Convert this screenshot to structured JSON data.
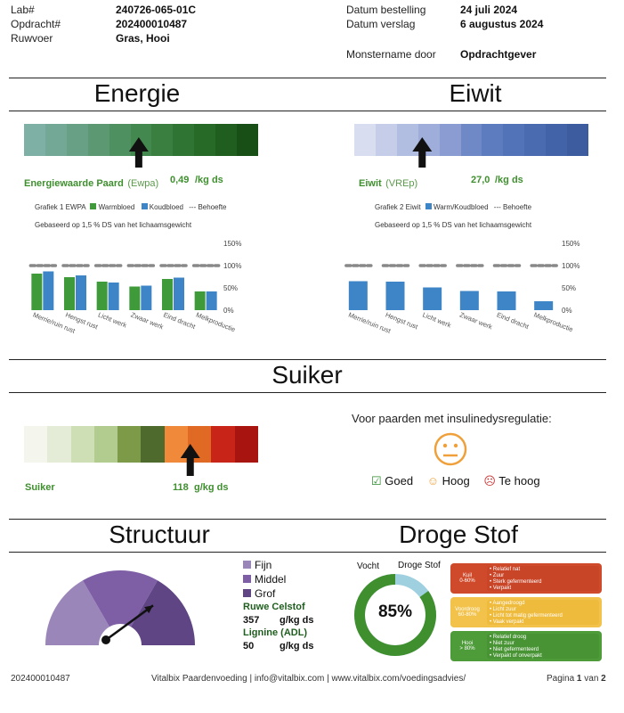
{
  "header": {
    "lab_label": "Lab#",
    "lab_value": "240726-065-01C",
    "order_label": "Opdracht#",
    "order_value": "202400010487",
    "feed_label": "Ruwvoer",
    "feed_value": "Gras, Hooi",
    "order_date_label": "Datum bestelling",
    "order_date_value": "24 juli 2024",
    "report_date_label": "Datum verslag",
    "report_date_value": "6 augustus 2024",
    "sampling_label": "Monstername door",
    "sampling_value": "Opdrachtgever"
  },
  "energie": {
    "title": "Energie",
    "colors": [
      "#7fb0a6",
      "#72a895",
      "#67a084",
      "#5c9872",
      "#4f9060",
      "#43884e",
      "#3a7f40",
      "#307433",
      "#276a28",
      "#1f5e1e",
      "#184f16"
    ],
    "arrow_position": 0.49,
    "name": "Energiewaarde Paard",
    "unit_abbr": "(Ewpa)",
    "value": "0,49",
    "unit": "/kg ds",
    "legend_title": "Grafiek 1 EWPA",
    "legend_a": "Warmbloed",
    "legend_b": "Koudbloed",
    "legend_c": "--- Behoefte",
    "note": "Gebaseerd op 1,5 % DS van het lichaamsgewicht"
  },
  "eiwit": {
    "title": "Eiwit",
    "colors": [
      "#d8def0",
      "#c5cde9",
      "#b2bde2",
      "#9fadda",
      "#8a9cd2",
      "#6f89c6",
      "#5d7bbf",
      "#5273b8",
      "#4a6bb0",
      "#4363a8",
      "#3d5ca0"
    ],
    "arrow_position": 0.29,
    "name": "Eiwit",
    "unit_abbr": "(VREp)",
    "value": "27,0",
    "unit": "/kg ds",
    "legend_title": "Grafiek 2 Eiwit",
    "legend_a": "Warm/Koudbloed",
    "legend_c": "--- Behoefte",
    "note": "Gebaseerd op 1,5 % DS van het lichaamsgewicht"
  },
  "chart_data": [
    {
      "type": "bar",
      "title": "Grafiek 1 EWPA",
      "categories": [
        "Merrie/ruin rust",
        "Hengst rust",
        "Licht werk",
        "Zwaar werk",
        "Eind dracht",
        "Melkproductie"
      ],
      "series": [
        {
          "name": "Warmbloed",
          "values": [
            82,
            74,
            64,
            53,
            70,
            42
          ]
        },
        {
          "name": "Koudbloed",
          "values": [
            87,
            78,
            62,
            55,
            73,
            42
          ]
        },
        {
          "name": "Behoefte",
          "values": [
            100,
            100,
            100,
            100,
            100,
            100
          ]
        }
      ],
      "y_ticks": [
        "150%",
        "100%",
        "50%",
        "0%"
      ],
      "ylim": [
        0,
        150
      ]
    },
    {
      "type": "bar",
      "title": "Grafiek 2 Eiwit",
      "categories": [
        "Merrie/ruin rust",
        "Hengst rust",
        "Licht werk",
        "Zwaar werk",
        "Eind dracht",
        "Melkproductie"
      ],
      "series": [
        {
          "name": "Warm/Koudbloed",
          "values": [
            65,
            64,
            51,
            43,
            42,
            20
          ]
        },
        {
          "name": "Behoefte",
          "values": [
            100,
            100,
            100,
            100,
            100,
            100
          ]
        }
      ],
      "y_ticks": [
        "150%",
        "100%",
        "50%",
        "0%"
      ],
      "ylim": [
        0,
        150
      ]
    }
  ],
  "suiker": {
    "title": "Suiker",
    "colors": [
      "#f4f6ee",
      "#e4ebd6",
      "#cfdfb5",
      "#b2cb8f",
      "#7c9a47",
      "#4e6a2c",
      "#f08a3a",
      "#e06a24",
      "#c82418",
      "#a81410"
    ],
    "arrow_position": 0.71,
    "name": "Suiker",
    "value": "118",
    "unit": "g/kg ds",
    "advice_title": "Voor paarden met insulinedysregulatie:",
    "legend_good": "Goed",
    "legend_high": "Hoog",
    "legend_too_high": "Te hoog",
    "good_glyph": "☑",
    "high_glyph": "☺",
    "too_high_glyph": "☹"
  },
  "structuur": {
    "title": "Structuur",
    "legend_fijn": "Fijn",
    "legend_middel": "Middel",
    "legend_grof": "Grof",
    "colors": [
      "#9b86ba",
      "#7e5fa6",
      "#5f4584"
    ],
    "needle_value": 0.72,
    "celstof_label": "Ruwe Celstof",
    "celstof_value": "357",
    "celstof_unit": "g/kg ds",
    "lignine_label": "Lignine (ADL)",
    "lignine_value": "50",
    "lignine_unit": "g/kg ds"
  },
  "droge_stof": {
    "title": "Droge Stof",
    "vocht_label": "Vocht",
    "ds_label": "Droge Stof",
    "percent": "85%",
    "fraction": 0.85,
    "boxes": [
      {
        "name": "Kuil",
        "range": "0-60%",
        "color": "#cf4a2a",
        "items": [
          "Relatief nat",
          "Zuur",
          "Sterk gefermenteerd",
          "Verpakt"
        ]
      },
      {
        "name": "Voordroog",
        "range": "60-80%",
        "color": "#f2c24a",
        "items": [
          "Aangedroogd",
          "Licht zuur",
          "Licht tot matig gefermenteerd",
          "Vaak verpakt"
        ]
      },
      {
        "name": "Hooi",
        "range": "> 80%",
        "color": "#4e9b3a",
        "items": [
          "Relatief droog",
          "Niet zuur",
          "Niet gefermenteerd",
          "Verpakt of onverpakt"
        ]
      }
    ]
  },
  "footer": {
    "order": "202400010487",
    "company": "Vitalbix Paardenvoeding | info@vitalbix.com | www.vitalbix.com/voedingsadvies/",
    "page_prefix": "Pagina",
    "page_current": "1",
    "page_sep": "van",
    "page_total": "2"
  }
}
